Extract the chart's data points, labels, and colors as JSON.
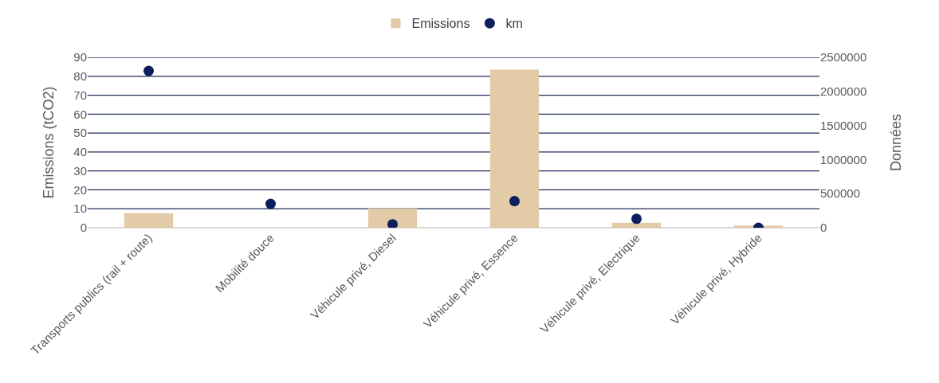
{
  "chart_data": {
    "type": "bar",
    "categories": [
      "Transports publics (rail + route)",
      "Mobilité douce",
      "Véhicule privé, Diesel",
      "Véhicule privé, Essence",
      "Véhicule privé, Electrique",
      "Véhicule privé, Hybride"
    ],
    "series": [
      {
        "name": "Emissions",
        "color": "#e2cba6",
        "values": [
          7.7,
          0,
          10.2,
          83.5,
          2.6,
          1.2
        ]
      },
      {
        "name": "km",
        "type": "scatter",
        "axis": "y2",
        "color": "#0c1f5c",
        "values": [
          2300000,
          350000,
          50000,
          390000,
          130000,
          0
        ]
      }
    ],
    "ylabel": "Emissions (tCO2)",
    "y2label": "Données",
    "ylim": [
      0,
      90
    ],
    "yticks": [
      0,
      10,
      20,
      30,
      40,
      50,
      60,
      70,
      80,
      90
    ],
    "y2lim": [
      0,
      2500000
    ],
    "y2ticks": [
      0,
      500000,
      1000000,
      1500000,
      2000000,
      2500000
    ],
    "grid": "y",
    "legend": "top",
    "marker": "circle"
  }
}
